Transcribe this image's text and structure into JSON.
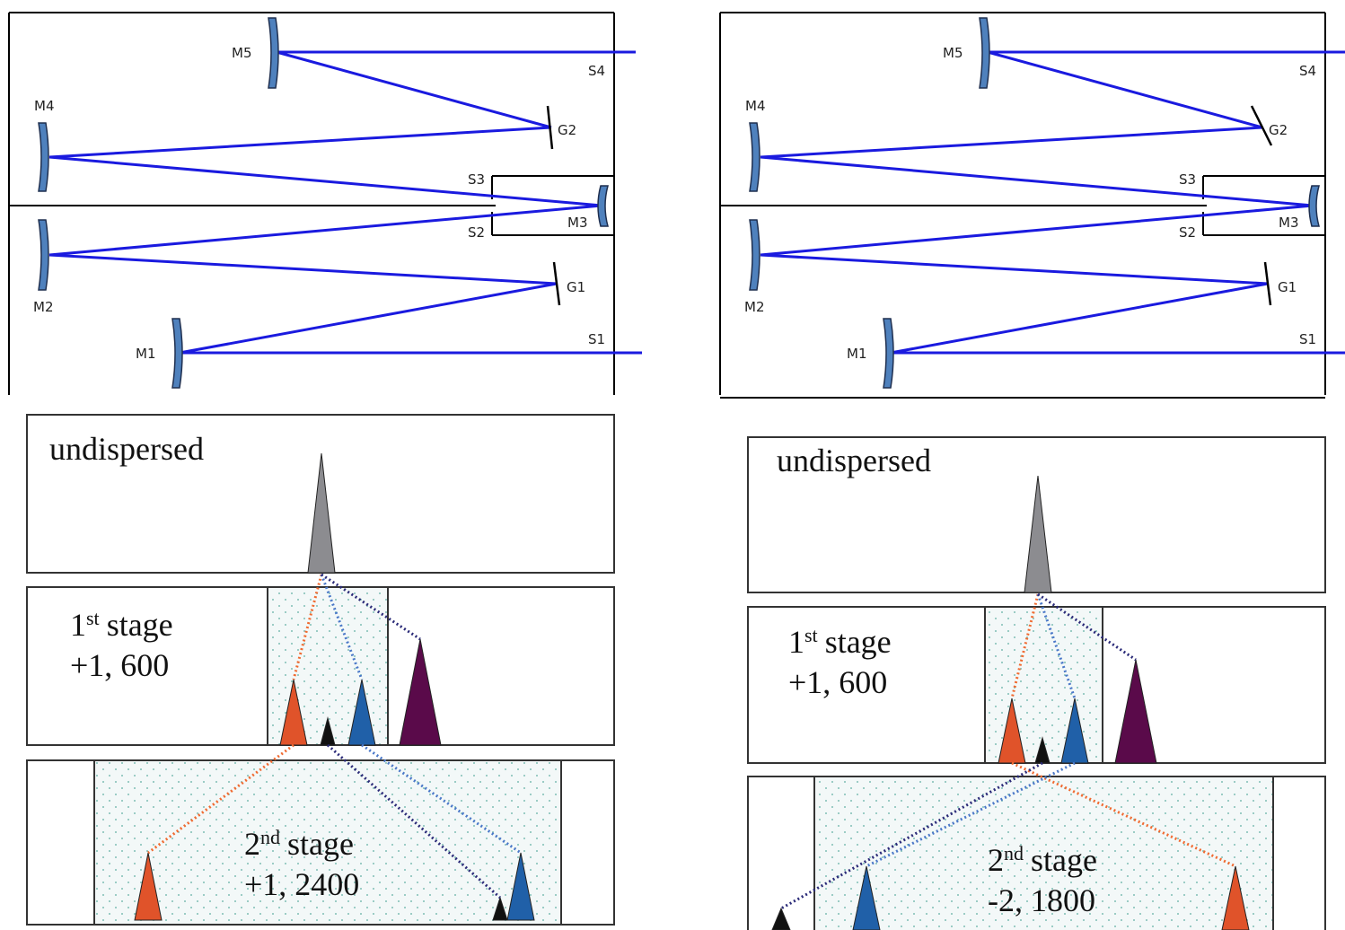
{
  "optical_layouts": [
    {
      "labels": [
        "M5",
        "S4",
        "M4",
        "G2",
        "S3",
        "M3",
        "S2",
        "M2",
        "G1",
        "S1",
        "M1"
      ]
    },
    {
      "labels": [
        "M5",
        "S4",
        "M4",
        "G2",
        "S3",
        "M3",
        "S2",
        "M2",
        "G1",
        "S1",
        "M1"
      ]
    }
  ],
  "dispersion_panels": [
    {
      "undispersed": "undispersed",
      "stage1": {
        "ordinal": "1",
        "suffix": "st",
        "word": "stage",
        "setting": "+1, 600"
      },
      "stage2": {
        "ordinal": "2",
        "suffix": "nd",
        "word": "stage",
        "setting": "+1, 2400"
      }
    },
    {
      "undispersed": "undispersed",
      "stage1": {
        "ordinal": "1",
        "suffix": "st",
        "word": "stage",
        "setting": "+1, 600"
      },
      "stage2": {
        "ordinal": "2",
        "suffix": "nd",
        "word": "stage",
        "setting": "-2, 1800"
      }
    }
  ]
}
